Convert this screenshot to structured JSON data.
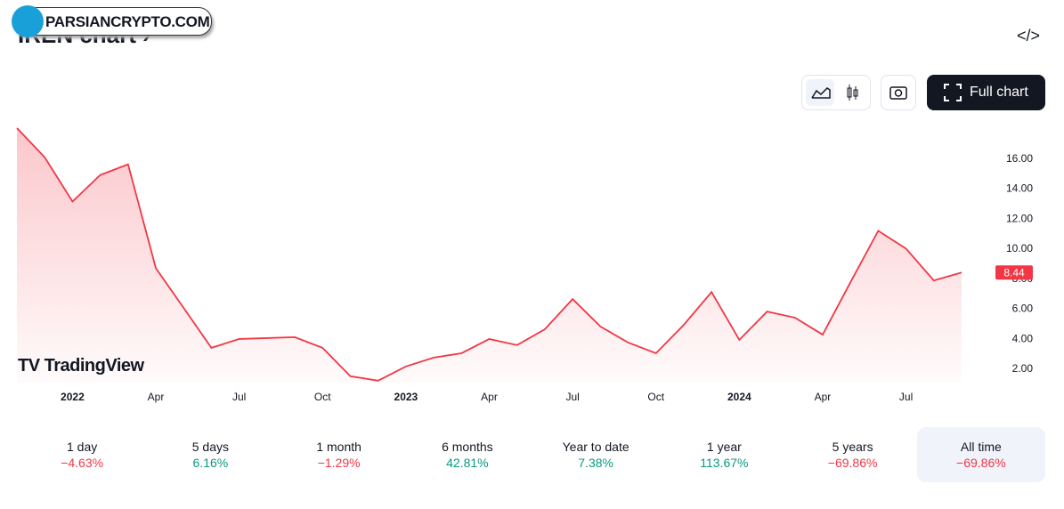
{
  "header": {
    "title": "IREN chart ›",
    "watermark": "PARSIANCRYPTO.COM",
    "embed_icon": "</>",
    "full_chart": "Full chart",
    "brand": "TradingView"
  },
  "chart_data": {
    "type": "area",
    "color": "#f23645",
    "categories": [
      null,
      null,
      "2022",
      null,
      null,
      "Apr",
      null,
      null,
      "Jul",
      null,
      null,
      "Oct",
      null,
      null,
      "2023",
      null,
      null,
      "Apr",
      null,
      null,
      "Jul",
      null,
      null,
      "Oct",
      null,
      null,
      "2024",
      null,
      null,
      "Apr",
      null,
      null,
      "Jul",
      null,
      null
    ],
    "values": [
      18.07,
      16.12,
      13.17,
      14.94,
      15.65,
      8.73,
      6.08,
      3.42,
      4.01,
      4.07,
      4.13,
      3.42,
      1.53,
      1.23,
      2.18,
      2.77,
      3.06,
      4.01,
      3.6,
      4.66,
      6.67,
      4.84,
      3.77,
      3.06,
      4.95,
      7.14,
      3.95,
      5.84,
      5.43,
      4.3,
      7.79,
      11.22,
      10.03,
      7.91,
      8.44
    ],
    "ylim": [
      1.1,
      18.3
    ],
    "yticks": [
      {
        "value": 2,
        "label": "2.00"
      },
      {
        "value": 4,
        "label": "4.00"
      },
      {
        "value": 6,
        "label": "6.00"
      },
      {
        "value": 8,
        "label": "8.00"
      },
      {
        "value": 10,
        "label": "10.00"
      },
      {
        "value": 12,
        "label": "12.00"
      },
      {
        "value": 14,
        "label": "14.00"
      },
      {
        "value": 16,
        "label": "16.00"
      }
    ]
  },
  "periods": [
    {
      "label": "1 day",
      "change": "−4.63%",
      "color": "#f23645"
    },
    {
      "label": "5 days",
      "change": "6.16%",
      "color": "#089981"
    },
    {
      "label": "1 month",
      "change": "−1.29%",
      "color": "#f23645"
    },
    {
      "label": "6 months",
      "change": "42.81%",
      "color": "#089981"
    },
    {
      "label": "Year to date",
      "change": "7.38%",
      "color": "#089981"
    },
    {
      "label": "1 year",
      "change": "113.67%",
      "color": "#089981"
    },
    {
      "label": "5 years",
      "change": "−69.86%",
      "color": "#f23645"
    },
    {
      "label": "All time",
      "change": "−69.86%",
      "color": "#f23645"
    }
  ]
}
